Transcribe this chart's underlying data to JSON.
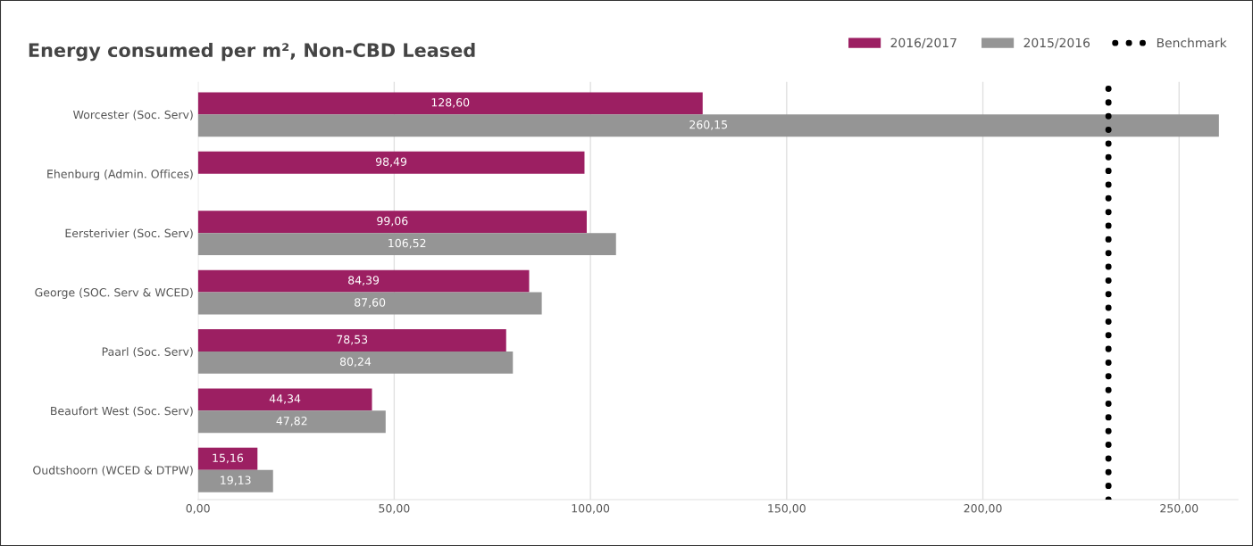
{
  "chart_data": {
    "type": "bar",
    "orientation": "horizontal",
    "title": "Energy consumed per m², Non-CBD Leased",
    "categories": [
      "Worcester (Soc. Serv)",
      "Ehenburg (Admin. Offices)",
      "Eersterivier (Soc. Serv)",
      "George (SOC. Serv & WCED)",
      "Paarl (Soc. Serv)",
      "Beaufort West (Soc. Serv)",
      "Oudtshoorn (WCED & DTPW)"
    ],
    "series": [
      {
        "name": "2016/2017",
        "color": "#9c1f62",
        "values": [
          128.6,
          98.49,
          99.06,
          84.39,
          78.53,
          44.34,
          15.16
        ],
        "value_labels": [
          "128,60",
          "98,49",
          "99,06",
          "84,39",
          "78,53",
          "44,34",
          "15,16"
        ]
      },
      {
        "name": "2015/2016",
        "color": "#959595",
        "values": [
          260.15,
          null,
          106.52,
          87.6,
          80.24,
          47.82,
          19.13
        ],
        "value_labels": [
          "260,15",
          null,
          "106,52",
          "87,60",
          "80,24",
          "47,82",
          "19,13"
        ]
      }
    ],
    "xlim": [
      0,
      265
    ],
    "xticks": [
      {
        "value": 0,
        "label": "0,00"
      },
      {
        "value": 50,
        "label": "50,00"
      },
      {
        "value": 100,
        "label": "100,00"
      },
      {
        "value": 150,
        "label": "150,00"
      },
      {
        "value": 200,
        "label": "200,00"
      },
      {
        "value": 250,
        "label": "250,00"
      }
    ],
    "ref_lines": [
      {
        "axis": "x",
        "value": 232,
        "label": "Benchmark",
        "color": "#000000",
        "line_style": "dotted"
      }
    ],
    "grid": "x",
    "legend": "top right"
  }
}
